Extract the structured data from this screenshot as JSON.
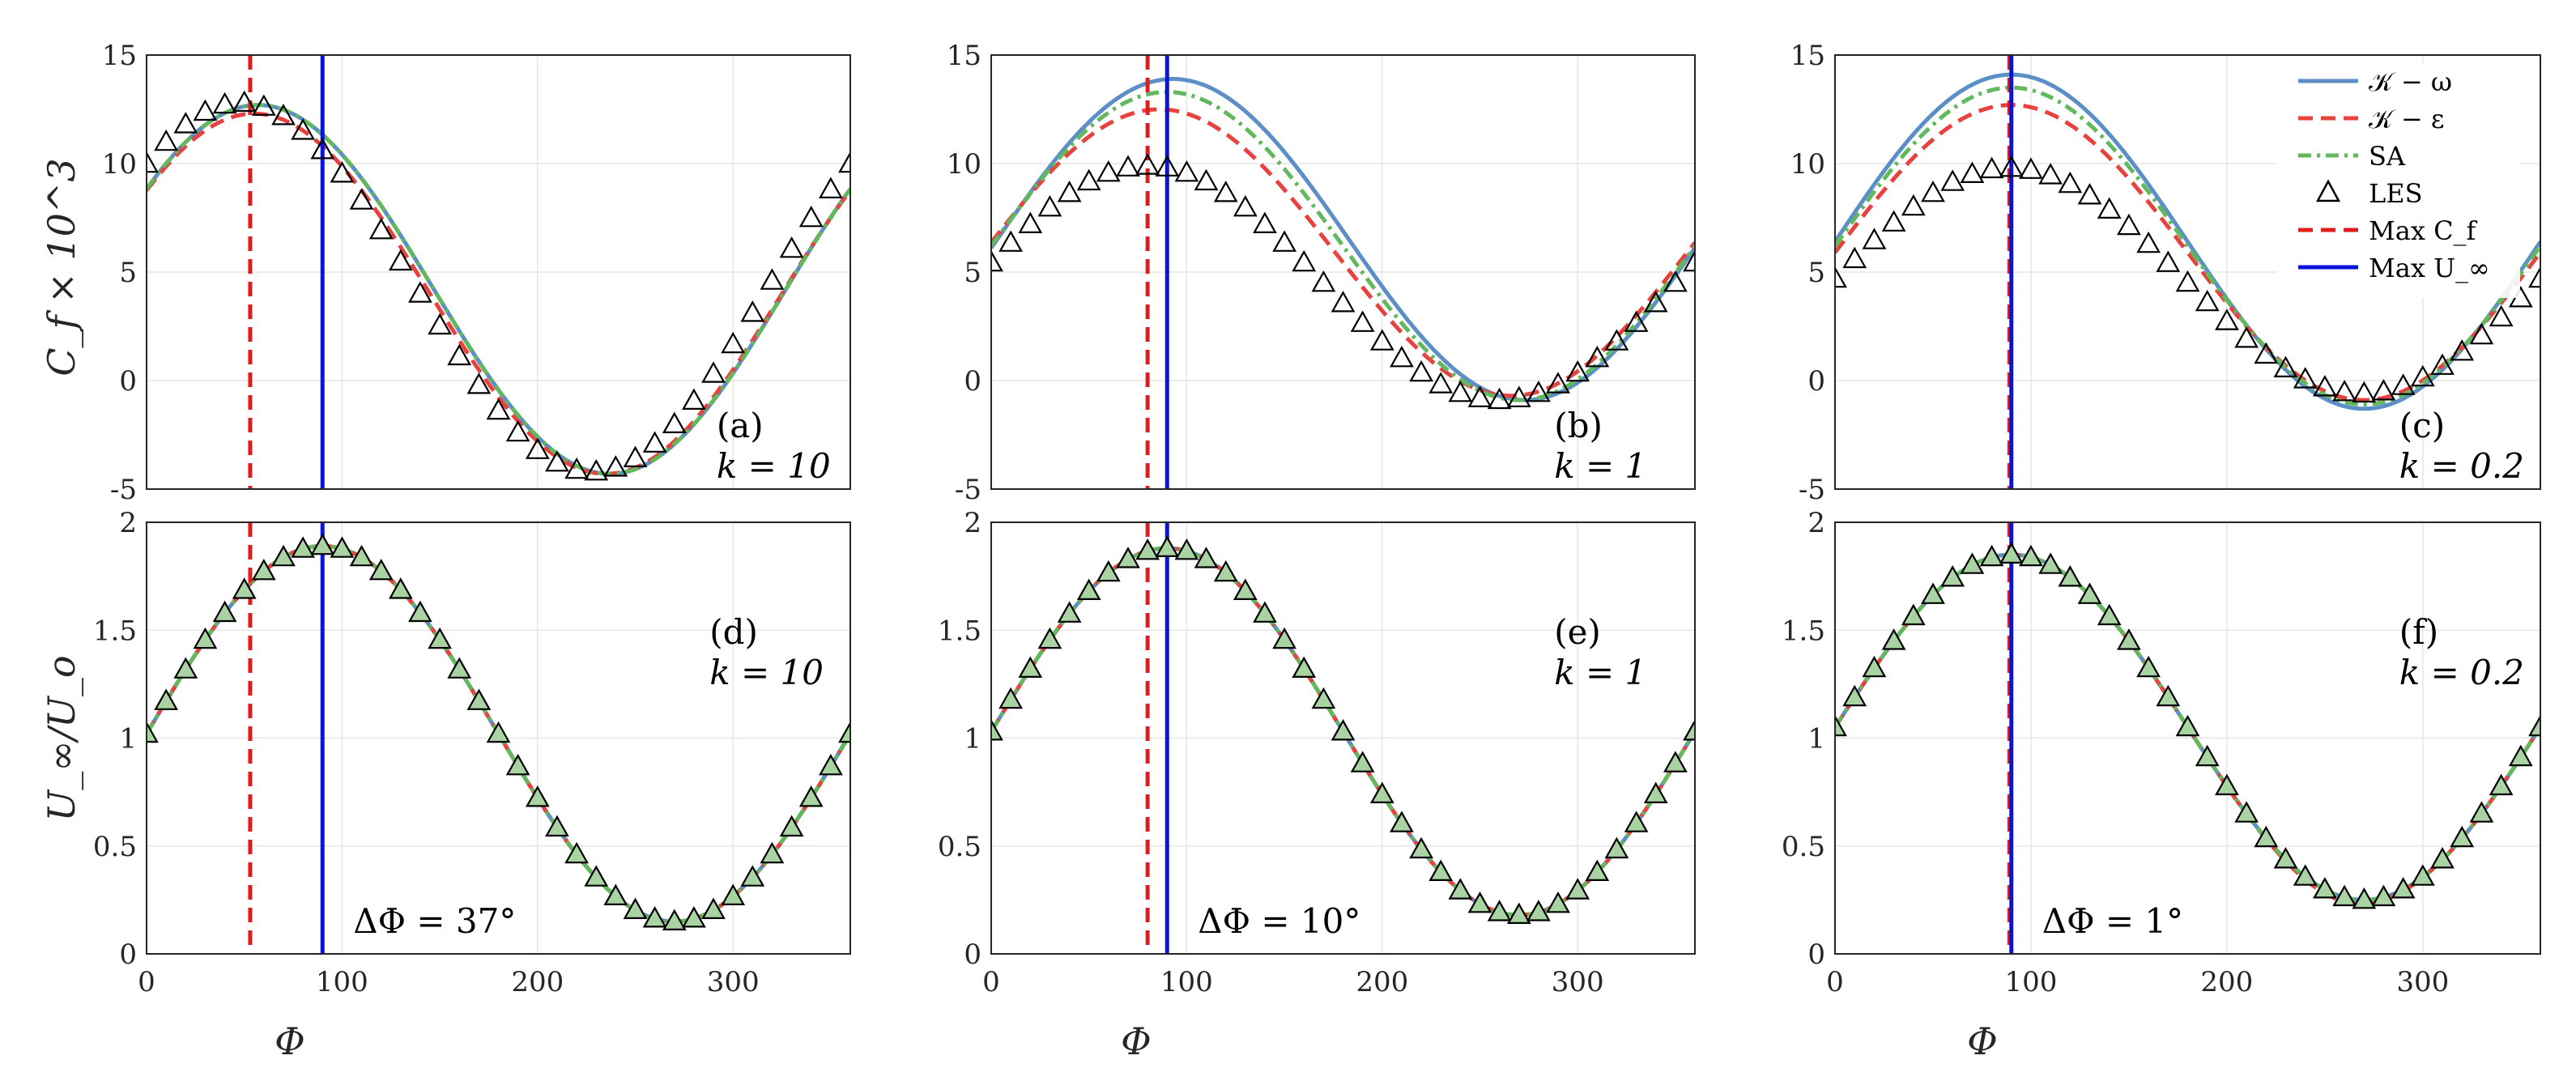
{
  "colors": {
    "k_omega": "#5b8fc6",
    "k_epsilon": "#e8423f",
    "sa": "#62b85c",
    "les_fill": "#a9d3a2",
    "max_cf": "#e01c1c",
    "max_uinf": "#0a14d8"
  },
  "legend": {
    "entries": [
      {
        "id": "k_omega",
        "text": "𝒦 − ω"
      },
      {
        "id": "k_epsilon",
        "text": "𝒦 − ε"
      },
      {
        "id": "sa",
        "text": "SA"
      },
      {
        "id": "les",
        "text": "LES"
      },
      {
        "id": "max_cf",
        "text": "Max C_f"
      },
      {
        "id": "max_uinf",
        "text": "Max U_∞"
      }
    ],
    "placement": "top-right of panel (c)"
  },
  "labels": {
    "x": "Φ",
    "y_top": "C_f × 10^3",
    "y_bottom": "U_∞/U_o"
  },
  "chart_data": [
    {
      "panel": "a",
      "type": "line",
      "row": "top",
      "col": 0,
      "title_label": "(a)",
      "k_label": "k = 10",
      "xlim": [
        0,
        360
      ],
      "ylim": [
        -5,
        15
      ],
      "xticks": [
        0,
        100,
        200,
        300
      ],
      "yticks": [
        -5,
        0,
        5,
        10,
        15
      ],
      "ytick_labels": [
        "-5",
        "0",
        "5",
        "10",
        "15"
      ],
      "phase": 37,
      "max_cf": 53,
      "max_uinf": 90,
      "rans_shift": [
        0,
        0,
        0
      ],
      "series": [
        {
          "name": "𝒦 − ω",
          "mean": 4.2,
          "amp": 8.5,
          "peak": 57
        },
        {
          "name": "𝒦 − ε",
          "mean": 4.0,
          "amp": 8.3,
          "peak": 55
        },
        {
          "name": "SA",
          "mean": 4.2,
          "amp": 8.5,
          "peak": 57
        },
        {
          "name": "LES",
          "mean": 4.3,
          "amp": 8.5,
          "peak": 48
        }
      ]
    },
    {
      "panel": "b",
      "type": "line",
      "row": "top",
      "col": 1,
      "title_label": "(b)",
      "k_label": "k = 1",
      "xlim": [
        0,
        360
      ],
      "ylim": [
        -5,
        15
      ],
      "xticks": [
        0,
        100,
        200,
        300
      ],
      "yticks": [
        -5,
        0,
        5,
        10,
        15
      ],
      "ytick_labels": [
        "-5",
        "0",
        "5",
        "10",
        "15"
      ],
      "phase": 10,
      "max_cf": 80,
      "max_uinf": 90,
      "series": [
        {
          "name": "𝒦 − ω",
          "mean": 6.5,
          "amp": 7.4,
          "peak": 93
        },
        {
          "name": "𝒦 − ε",
          "mean": 5.9,
          "amp": 6.6,
          "peak": 86
        },
        {
          "name": "SA",
          "mean": 6.2,
          "amp": 7.1,
          "peak": 90
        },
        {
          "name": "LES",
          "mean": 4.5,
          "amp": 5.4,
          "peak": 80
        }
      ]
    },
    {
      "panel": "c",
      "type": "line",
      "row": "top",
      "col": 2,
      "title_label": "(c)",
      "k_label": "k = 0.2",
      "xlim": [
        0,
        360
      ],
      "ylim": [
        -5,
        15
      ],
      "xticks": [
        0,
        100,
        200,
        300
      ],
      "yticks": [
        -5,
        0,
        5,
        10,
        15
      ],
      "ytick_labels": [
        "-5",
        "0",
        "5",
        "10",
        "15"
      ],
      "phase": 1,
      "max_cf": 89,
      "max_uinf": 90,
      "series": [
        {
          "name": "𝒦 − ω",
          "mean": 6.4,
          "amp": 7.7,
          "peak": 90
        },
        {
          "name": "𝒦 − ε",
          "mean": 5.9,
          "amp": 6.8,
          "peak": 90
        },
        {
          "name": "SA",
          "mean": 6.2,
          "amp": 7.3,
          "peak": 90
        },
        {
          "name": "LES",
          "mean": 4.6,
          "amp": 5.2,
          "peak": 89
        }
      ]
    },
    {
      "panel": "d",
      "type": "line",
      "row": "bottom",
      "col": 0,
      "title_label": "(d)",
      "k_label": "k = 10",
      "dphi_label": "ΔΦ = 37°",
      "xlim": [
        0,
        360
      ],
      "ylim": [
        0,
        2
      ],
      "xticks": [
        0,
        100,
        200,
        300
      ],
      "yticks": [
        0,
        0.5,
        1,
        1.5,
        2
      ],
      "ytick_labels": [
        "0",
        "0.5",
        "1",
        "1.5",
        "2"
      ],
      "max_cf": 53,
      "max_uinf": 90,
      "series": [
        {
          "name": "U_∞/U_o",
          "mean": 1.02,
          "amp": 0.87,
          "peak": 90
        }
      ]
    },
    {
      "panel": "e",
      "type": "line",
      "row": "bottom",
      "col": 1,
      "title_label": "(e)",
      "k_label": "k = 1",
      "dphi_label": "ΔΦ = 10°",
      "xlim": [
        0,
        360
      ],
      "ylim": [
        0,
        2
      ],
      "xticks": [
        0,
        100,
        200,
        300
      ],
      "yticks": [
        0,
        0.5,
        1,
        1.5,
        2
      ],
      "ytick_labels": [
        "0",
        "0.5",
        "1",
        "1.5",
        "2"
      ],
      "max_cf": 80,
      "max_uinf": 90,
      "series": [
        {
          "name": "U_∞/U_o",
          "mean": 1.03,
          "amp": 0.85,
          "peak": 90
        }
      ]
    },
    {
      "panel": "f",
      "type": "line",
      "row": "bottom",
      "col": 2,
      "title_label": "(f)",
      "k_label": "k = 0.2",
      "dphi_label": "ΔΦ = 1°",
      "xlim": [
        0,
        360
      ],
      "ylim": [
        0,
        2
      ],
      "xticks": [
        0,
        100,
        200,
        300
      ],
      "yticks": [
        0,
        0.5,
        1,
        1.5,
        2
      ],
      "ytick_labels": [
        "0",
        "0.5",
        "1",
        "1.5",
        "2"
      ],
      "max_cf": 89,
      "max_uinf": 90,
      "series": [
        {
          "name": "U_∞/U_o",
          "mean": 1.05,
          "amp": 0.8,
          "peak": 90
        }
      ]
    }
  ]
}
